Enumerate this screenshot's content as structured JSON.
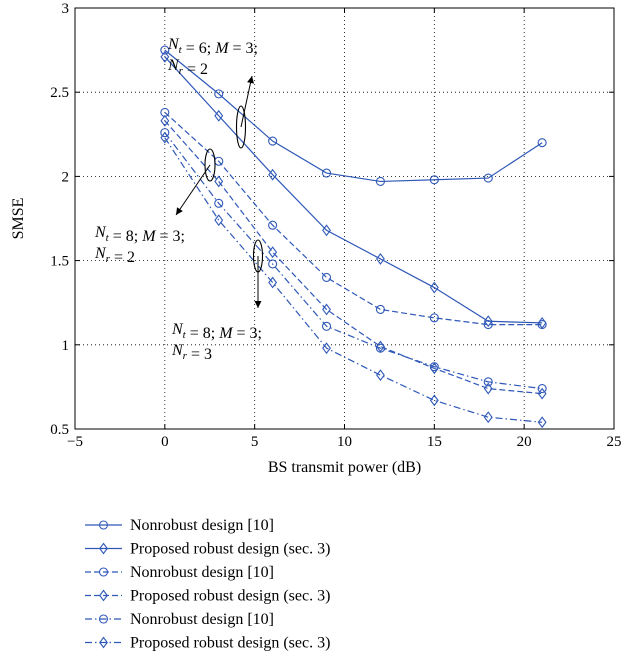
{
  "chart_data": {
    "type": "line",
    "xlabel": "BS transmit power (dB)",
    "ylabel": "SMSE",
    "xlim": [
      -5,
      25
    ],
    "ylim": [
      0.5,
      3
    ],
    "xticks": [
      -5,
      0,
      5,
      10,
      15,
      20,
      25
    ],
    "yticks": [
      0.5,
      1,
      1.5,
      2,
      2.5,
      3
    ],
    "xtick_labels": [
      "−5",
      "0",
      "5",
      "10",
      "15",
      "20",
      "25"
    ],
    "ytick_labels": [
      "0.5",
      "1",
      "1.5",
      "2",
      "2.5",
      "3"
    ],
    "grid": true,
    "legend_position": "below",
    "color": "#2f58b8",
    "annotations": [
      {
        "lines": [
          [
            [
              "N",
              "t"
            ],
            " = 6; ",
            [
              "M",
              ""
            ],
            " = 3;"
          ],
          [
            [
              "N",
              "r"
            ],
            " = 2"
          ]
        ]
      },
      {
        "lines": [
          [
            [
              "N",
              "t"
            ],
            " = 8; ",
            [
              "M",
              ""
            ],
            " = 3;"
          ],
          [
            [
              "N",
              "r"
            ],
            " = 2"
          ]
        ]
      },
      {
        "lines": [
          [
            [
              "N",
              "t"
            ],
            " = 8; ",
            [
              "M",
              ""
            ],
            " = 3;"
          ],
          [
            [
              "N",
              "r"
            ],
            " = 3"
          ]
        ]
      }
    ],
    "series": [
      {
        "name": "Nonrobust design [10]",
        "marker": "circle",
        "dash": "solid",
        "x": [
          0,
          3,
          6,
          9,
          12,
          15,
          18,
          21
        ],
        "y": [
          2.75,
          2.49,
          2.21,
          2.02,
          1.97,
          1.98,
          1.99,
          2.2
        ]
      },
      {
        "name": "Proposed robust design (sec. 3)",
        "marker": "diamond",
        "dash": "solid",
        "x": [
          0,
          3,
          6,
          9,
          12,
          15,
          18,
          21
        ],
        "y": [
          2.71,
          2.36,
          2.01,
          1.68,
          1.51,
          1.34,
          1.14,
          1.13
        ]
      },
      {
        "name": "Nonrobust design [10]",
        "marker": "circle",
        "dash": "dashed",
        "x": [
          0,
          3,
          6,
          9,
          12,
          15,
          18,
          21
        ],
        "y": [
          2.38,
          2.09,
          1.71,
          1.4,
          1.21,
          1.16,
          1.12,
          1.12
        ]
      },
      {
        "name": "Proposed robust design (sec. 3)",
        "marker": "diamond",
        "dash": "dashed",
        "x": [
          0,
          3,
          6,
          9,
          12,
          15,
          18,
          21
        ],
        "y": [
          2.33,
          1.97,
          1.55,
          1.21,
          0.99,
          0.86,
          0.74,
          0.71
        ]
      },
      {
        "name": "Nonrobust design [10]",
        "marker": "circle",
        "dash": "dashdot",
        "x": [
          0,
          3,
          6,
          9,
          12,
          15,
          18,
          21
        ],
        "y": [
          2.26,
          1.84,
          1.48,
          1.11,
          0.98,
          0.87,
          0.78,
          0.74
        ]
      },
      {
        "name": "Proposed robust design (sec. 3)",
        "marker": "diamond",
        "dash": "dashdot",
        "x": [
          0,
          3,
          6,
          9,
          12,
          15,
          18,
          21
        ],
        "y": [
          2.23,
          1.74,
          1.37,
          0.98,
          0.82,
          0.67,
          0.57,
          0.54
        ]
      }
    ]
  }
}
